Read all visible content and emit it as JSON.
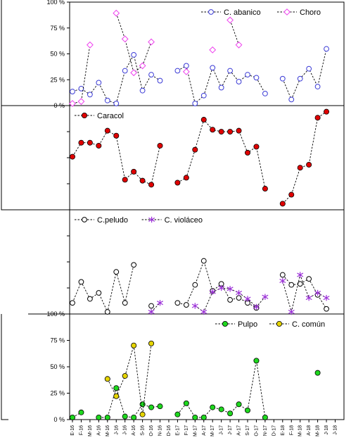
{
  "x_categories": [
    "E-16",
    "F-16",
    "M-16",
    "A-16",
    "M-16",
    "J-16",
    "J-16",
    "A-16",
    "S-16",
    "O-16",
    "N-16",
    "D-16",
    "E-17",
    "F-17",
    "M-17",
    "A-17",
    "M-17",
    "J-17",
    "J-17",
    "A-17",
    "S-17",
    "O-17",
    "N-17",
    "D-17",
    "E-18",
    "F-18",
    "M-18",
    "A-18",
    "M-18",
    "J-18",
    "J-18"
  ],
  "colors": {
    "abanico": "#3b3bd6",
    "choro": "#ee3fee",
    "caracol": "#e00000",
    "violaceo": "#9b2fd8",
    "pulpo": "#1ed81e",
    "comun": "#e5d400",
    "axis": "#000000",
    "leader": "#000000"
  },
  "chart_data": [
    {
      "type": "line",
      "panel": "top",
      "ylim": [
        0,
        100
      ],
      "y_ticks": [
        "0 %",
        "25 %",
        "50 %",
        "75 %",
        "100 %"
      ],
      "y_tick_values": [
        0,
        25,
        50,
        75,
        100
      ],
      "legend_position": "top-right",
      "series": [
        {
          "name": "C. abanico",
          "marker": "open-circle",
          "values": [
            12,
            15,
            9,
            21,
            3,
            0,
            33,
            49,
            13,
            29,
            23,
            null,
            33,
            38,
            0,
            8,
            36,
            16,
            33,
            22,
            29,
            26,
            10,
            null,
            25,
            4,
            25,
            35,
            17,
            55,
            null
          ]
        },
        {
          "name": "Choro",
          "marker": "open-diamond",
          "values": [
            0,
            2,
            59,
            null,
            null,
            91,
            65,
            31,
            38,
            62,
            null,
            null,
            null,
            32,
            null,
            null,
            54,
            null,
            84,
            59,
            null,
            null,
            null,
            null,
            null,
            null,
            null,
            null,
            null,
            null,
            null
          ]
        }
      ]
    },
    {
      "type": "line",
      "panel": "caracol",
      "ylim": [
        0,
        100
      ],
      "legend_position": "top-left",
      "series": [
        {
          "name": "Caracol",
          "marker": "filled-circle",
          "values": [
            51,
            65,
            65,
            62,
            77,
            72,
            28,
            36,
            27,
            23,
            62,
            null,
            25,
            30,
            58,
            88,
            78,
            76,
            76,
            77,
            55,
            61,
            19,
            null,
            4,
            13,
            40,
            43,
            90,
            96,
            null
          ]
        }
      ]
    },
    {
      "type": "line",
      "panel": "peludo",
      "ylim": [
        0,
        100
      ],
      "legend_position": "top-left",
      "series": [
        {
          "name": "C.peludo",
          "marker": "open-circle",
          "values": [
            9,
            30,
            13,
            19,
            0,
            40,
            9,
            47,
            null,
            6,
            null,
            null,
            9,
            7,
            27,
            51,
            21,
            28,
            12,
            14,
            9,
            4,
            null,
            null,
            37,
            27,
            28,
            33,
            17,
            3,
            null
          ]
        },
        {
          "name": "C. violáceo",
          "marker": "asterisk",
          "values": [
            null,
            null,
            null,
            null,
            null,
            null,
            null,
            null,
            null,
            0,
            9,
            null,
            null,
            null,
            6,
            0,
            20,
            24,
            23,
            19,
            13,
            5,
            15,
            null,
            31,
            0,
            37,
            14,
            19,
            14,
            null
          ]
        }
      ]
    },
    {
      "type": "line",
      "panel": "bottom",
      "ylim": [
        0,
        100
      ],
      "y_ticks": [
        "0 %",
        "25 %",
        "50 %",
        "75 %",
        "100 %"
      ],
      "y_tick_values": [
        0,
        25,
        50,
        75,
        100
      ],
      "legend_position": "top-right",
      "series": [
        {
          "name": "Pulpo",
          "marker": "filled-circle",
          "values": [
            0,
            5,
            null,
            0,
            0,
            29,
            1,
            0,
            13,
            10,
            11,
            null,
            3,
            14,
            0,
            0,
            10,
            8,
            4,
            13,
            7,
            56,
            0,
            null,
            null,
            null,
            null,
            null,
            44,
            null,
            null
          ]
        },
        {
          "name": "C. común",
          "marker": "filled-circle",
          "values": [
            null,
            null,
            null,
            null,
            38,
            21,
            41,
            71,
            3,
            73,
            null,
            null,
            null,
            null,
            null,
            null,
            null,
            null,
            null,
            null,
            null,
            null,
            null,
            null,
            null,
            null,
            null,
            null,
            null,
            null,
            null
          ]
        }
      ]
    }
  ]
}
